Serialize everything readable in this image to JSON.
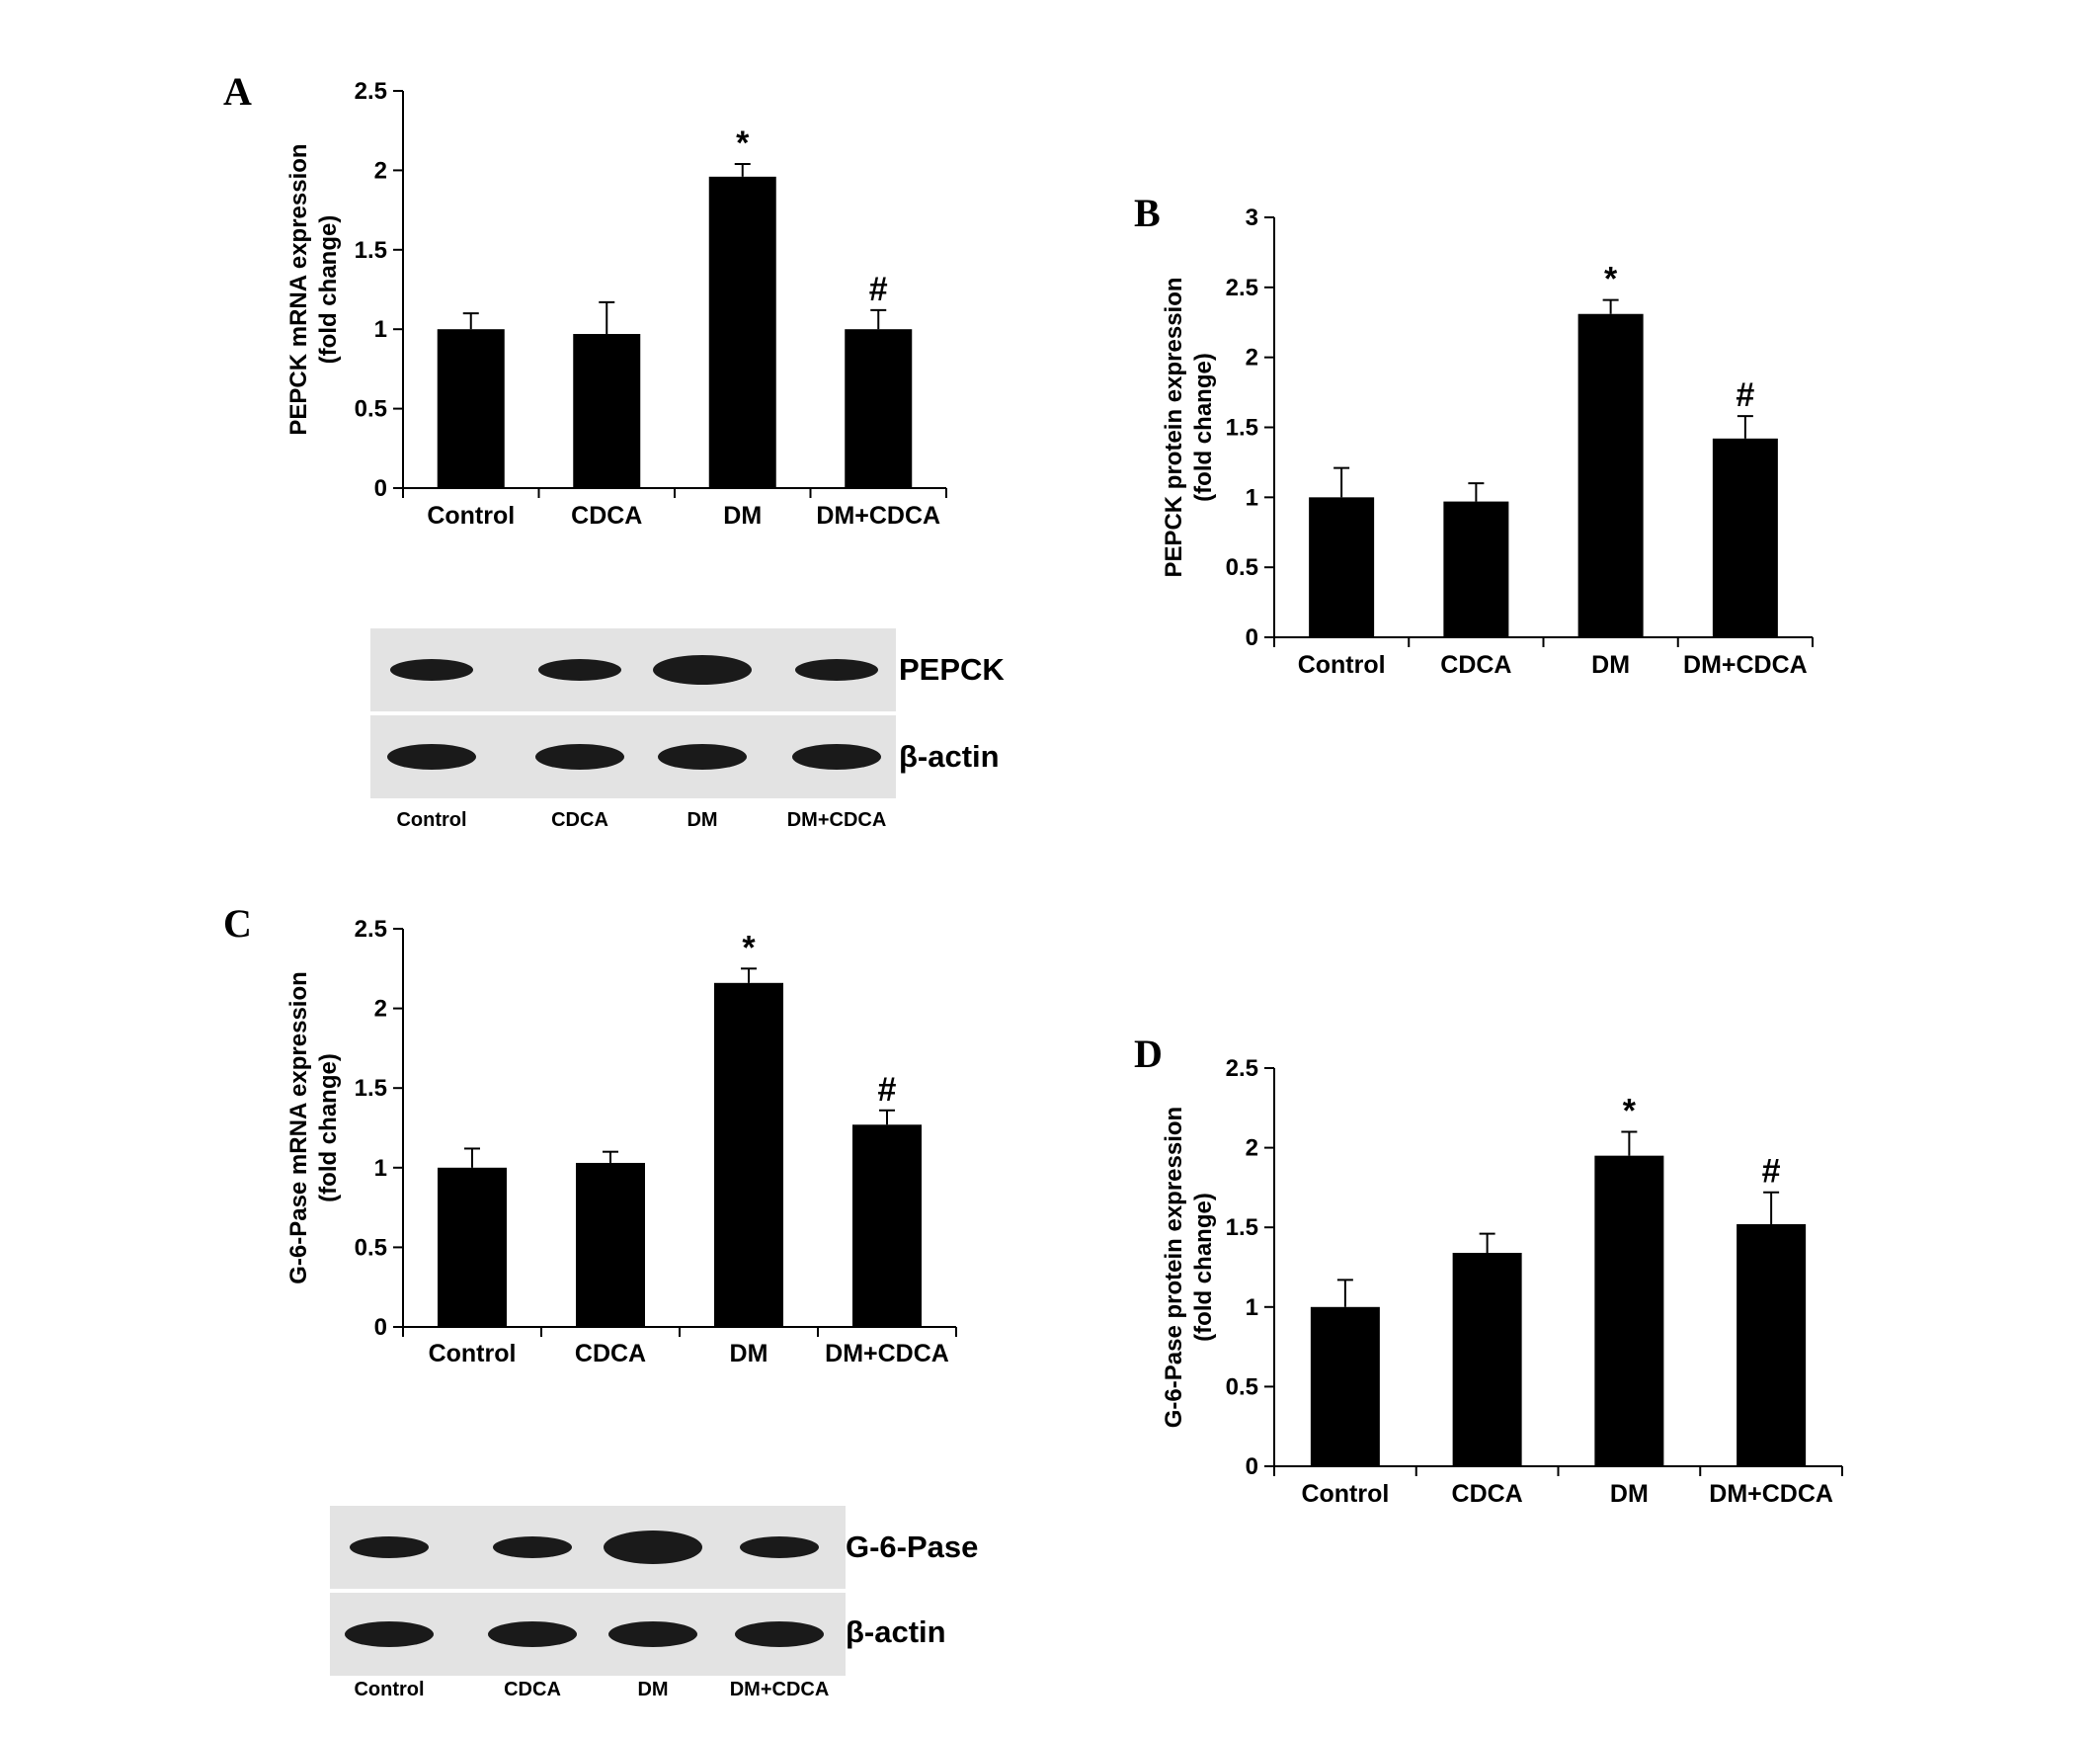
{
  "chart_data": [
    {
      "panel": "A",
      "type": "bar",
      "categories": [
        "Control",
        "CDCA",
        "DM",
        "DM+CDCA"
      ],
      "values": [
        1.0,
        0.97,
        1.96,
        1.0
      ],
      "errors": [
        0.1,
        0.2,
        0.08,
        0.12
      ],
      "annotations": [
        "",
        "",
        "*",
        "#"
      ],
      "ylabel": [
        "PEPCK mRNA expression",
        "(fold change)"
      ],
      "ylim": [
        0,
        2.5
      ],
      "yticks": [
        0,
        0.5,
        1,
        1.5,
        2,
        2.5
      ],
      "ytick_labels": [
        "0",
        "0.5",
        "1",
        "1.5",
        "2",
        "2.5"
      ],
      "blot": {
        "bands": [
          "PEPCK",
          "β-actin"
        ],
        "lanes": [
          "Control",
          "CDCA",
          "DM",
          "DM+CDCA"
        ]
      }
    },
    {
      "panel": "B",
      "type": "bar",
      "categories": [
        "Control",
        "CDCA",
        "DM",
        "DM+CDCA"
      ],
      "values": [
        1.0,
        0.97,
        2.31,
        1.42
      ],
      "errors": [
        0.21,
        0.13,
        0.1,
        0.16
      ],
      "annotations": [
        "",
        "",
        "*",
        "#"
      ],
      "ylabel": [
        "PEPCK protein expression",
        "(fold change)"
      ],
      "ylim": [
        0,
        3
      ],
      "yticks": [
        0,
        0.5,
        1,
        1.5,
        2,
        2.5,
        3
      ],
      "ytick_labels": [
        "0",
        "0.5",
        "1",
        "1.5",
        "2",
        "2.5",
        "3"
      ]
    },
    {
      "panel": "C",
      "type": "bar",
      "categories": [
        "Control",
        "CDCA",
        "DM",
        "DM+CDCA"
      ],
      "values": [
        1.0,
        1.03,
        2.16,
        1.27
      ],
      "errors": [
        0.12,
        0.07,
        0.09,
        0.09
      ],
      "annotations": [
        "",
        "",
        "*",
        "#"
      ],
      "ylabel": [
        "G-6-Pase mRNA expression",
        "(fold change)"
      ],
      "ylim": [
        0,
        2.5
      ],
      "yticks": [
        0,
        0.5,
        1,
        1.5,
        2,
        2.5
      ],
      "ytick_labels": [
        "0",
        "0.5",
        "1",
        "1.5",
        "2",
        "2.5"
      ],
      "blot": {
        "bands": [
          "G-6-Pase",
          "β-actin"
        ],
        "lanes": [
          "Control",
          "CDCA",
          "DM",
          "DM+CDCA"
        ]
      }
    },
    {
      "panel": "D",
      "type": "bar",
      "categories": [
        "Control",
        "CDCA",
        "DM",
        "DM+CDCA"
      ],
      "values": [
        1.0,
        1.34,
        1.95,
        1.52
      ],
      "errors": [
        0.17,
        0.12,
        0.15,
        0.2
      ],
      "annotations": [
        "",
        "",
        "*",
        "#"
      ],
      "ylabel": [
        "G-6-Pase protein expression",
        "(fold change)"
      ],
      "ylim": [
        0,
        2.5
      ],
      "yticks": [
        0,
        0.5,
        1,
        1.5,
        2,
        2.5
      ],
      "ytick_labels": [
        "0",
        "0.5",
        "1",
        "1.5",
        "2",
        "2.5"
      ]
    }
  ],
  "colors": {
    "bar": "#000000",
    "axis": "#000000",
    "blot_background": "#e3e3e3",
    "blot_band": "#1a1a1a"
  }
}
